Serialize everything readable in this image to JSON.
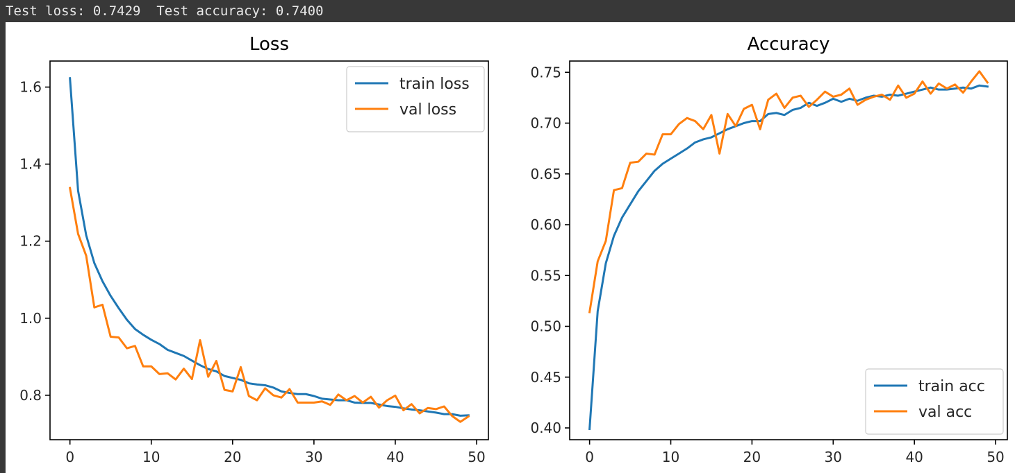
{
  "output": {
    "text": "Test loss: 0.7429  Test accuracy: 0.7400"
  },
  "colors": {
    "train": "#1f77b4",
    "val": "#ff7f0e",
    "axes": "#000000",
    "console_bg": "#383838",
    "console_text": "#e8e8e8"
  },
  "chart_data": [
    {
      "type": "line",
      "title": "Loss",
      "xlabel": "",
      "ylabel": "",
      "xlim": [
        -2.45,
        51.45
      ],
      "ylim": [
        0.6846,
        1.6676
      ],
      "xticks": [
        0,
        10,
        20,
        30,
        40,
        50
      ],
      "yticks": [
        0.8,
        1.0,
        1.2,
        1.4,
        1.6
      ],
      "ytick_labels": [
        "0.8",
        "1.0",
        "1.2",
        "1.4",
        "1.6"
      ],
      "legend": "top-right",
      "grid": false,
      "x": [
        0,
        1,
        2,
        3,
        4,
        5,
        6,
        7,
        8,
        9,
        10,
        11,
        12,
        13,
        14,
        15,
        16,
        17,
        18,
        19,
        20,
        21,
        22,
        23,
        24,
        25,
        26,
        27,
        28,
        29,
        30,
        31,
        32,
        33,
        34,
        35,
        36,
        37,
        38,
        39,
        40,
        41,
        42,
        43,
        44,
        45,
        46,
        47,
        48,
        49
      ],
      "series": [
        {
          "name": "train loss",
          "color": "#1f77b4",
          "values": [
            1.623,
            1.331,
            1.215,
            1.143,
            1.096,
            1.058,
            1.026,
            0.996,
            0.972,
            0.957,
            0.944,
            0.933,
            0.918,
            0.91,
            0.902,
            0.89,
            0.878,
            0.868,
            0.862,
            0.85,
            0.845,
            0.84,
            0.831,
            0.828,
            0.826,
            0.82,
            0.81,
            0.806,
            0.803,
            0.803,
            0.798,
            0.791,
            0.789,
            0.787,
            0.787,
            0.781,
            0.78,
            0.78,
            0.776,
            0.772,
            0.77,
            0.766,
            0.763,
            0.761,
            0.758,
            0.755,
            0.751,
            0.751,
            0.747,
            0.748
          ]
        },
        {
          "name": "val loss",
          "color": "#ff7f0e",
          "values": [
            1.338,
            1.219,
            1.162,
            1.028,
            1.035,
            0.952,
            0.95,
            0.922,
            0.928,
            0.875,
            0.875,
            0.855,
            0.857,
            0.841,
            0.869,
            0.842,
            0.943,
            0.848,
            0.889,
            0.814,
            0.81,
            0.873,
            0.798,
            0.787,
            0.818,
            0.8,
            0.794,
            0.816,
            0.781,
            0.781,
            0.781,
            0.784,
            0.775,
            0.802,
            0.787,
            0.798,
            0.781,
            0.796,
            0.768,
            0.787,
            0.799,
            0.761,
            0.777,
            0.753,
            0.767,
            0.764,
            0.771,
            0.746,
            0.731,
            0.745
          ]
        }
      ]
    },
    {
      "type": "line",
      "title": "Accuracy",
      "xlabel": "",
      "ylabel": "",
      "xlim": [
        -2.45,
        51.45
      ],
      "ylim": [
        0.3884,
        0.7611
      ],
      "xticks": [
        0,
        10,
        20,
        30,
        40,
        50
      ],
      "yticks": [
        0.4,
        0.45,
        0.5,
        0.55,
        0.6,
        0.65,
        0.7,
        0.75
      ],
      "ytick_labels": [
        "0.40",
        "0.45",
        "0.50",
        "0.55",
        "0.60",
        "0.65",
        "0.70",
        "0.75"
      ],
      "legend": "lower-right",
      "grid": false,
      "x": [
        0,
        1,
        2,
        3,
        4,
        5,
        6,
        7,
        8,
        9,
        10,
        11,
        12,
        13,
        14,
        15,
        16,
        17,
        18,
        19,
        20,
        21,
        22,
        23,
        24,
        25,
        26,
        27,
        28,
        29,
        30,
        31,
        32,
        33,
        34,
        35,
        36,
        37,
        38,
        39,
        40,
        41,
        42,
        43,
        44,
        45,
        46,
        47,
        48,
        49
      ],
      "series": [
        {
          "name": "train acc",
          "color": "#1f77b4",
          "values": [
            0.399,
            0.515,
            0.562,
            0.589,
            0.607,
            0.62,
            0.633,
            0.643,
            0.653,
            0.66,
            0.665,
            0.67,
            0.675,
            0.681,
            0.684,
            0.686,
            0.69,
            0.694,
            0.697,
            0.7,
            0.702,
            0.702,
            0.709,
            0.71,
            0.708,
            0.713,
            0.715,
            0.72,
            0.717,
            0.72,
            0.724,
            0.721,
            0.724,
            0.722,
            0.725,
            0.727,
            0.726,
            0.728,
            0.727,
            0.729,
            0.731,
            0.733,
            0.735,
            0.733,
            0.733,
            0.734,
            0.735,
            0.734,
            0.737,
            0.736
          ]
        },
        {
          "name": "val acc",
          "color": "#ff7f0e",
          "values": [
            0.514,
            0.564,
            0.584,
            0.634,
            0.636,
            0.661,
            0.662,
            0.67,
            0.669,
            0.689,
            0.689,
            0.699,
            0.705,
            0.702,
            0.694,
            0.708,
            0.67,
            0.709,
            0.697,
            0.714,
            0.718,
            0.694,
            0.723,
            0.729,
            0.715,
            0.725,
            0.727,
            0.716,
            0.723,
            0.731,
            0.726,
            0.728,
            0.734,
            0.718,
            0.723,
            0.726,
            0.728,
            0.723,
            0.737,
            0.725,
            0.729,
            0.741,
            0.729,
            0.739,
            0.734,
            0.738,
            0.73,
            0.741,
            0.751,
            0.74
          ]
        }
      ]
    }
  ]
}
